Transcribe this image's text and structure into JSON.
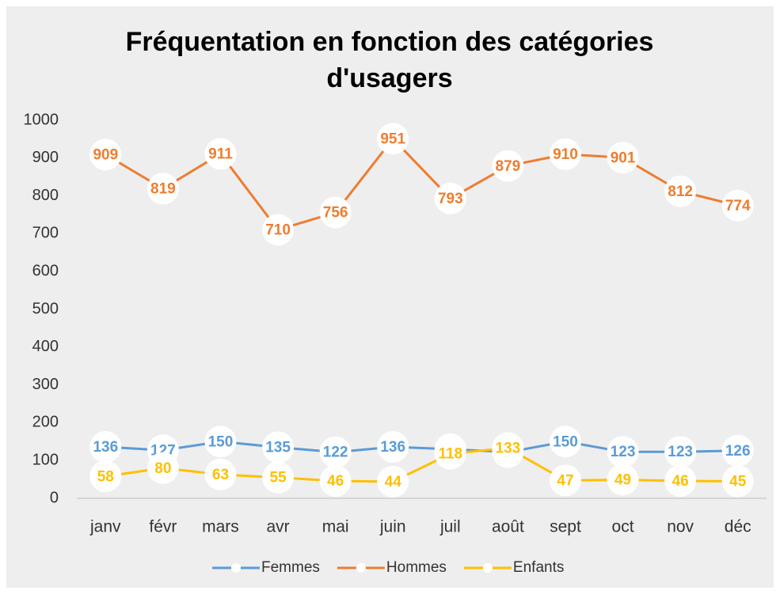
{
  "chart_data": {
    "type": "line",
    "title": "Fréquentation en fonction des catégories d'usagers",
    "categories": [
      "janv",
      "févr",
      "mars",
      "avr",
      "mai",
      "juin",
      "juil",
      "août",
      "sept",
      "oct",
      "nov",
      "déc"
    ],
    "series": [
      {
        "name": "Femmes",
        "color": "#5b9bd5",
        "values": [
          136,
          127,
          150,
          135,
          122,
          136,
          130,
          122,
          150,
          123,
          123,
          126
        ]
      },
      {
        "name": "Hommes",
        "color": "#ed7d31",
        "values": [
          909,
          819,
          911,
          710,
          756,
          951,
          793,
          879,
          910,
          901,
          812,
          774
        ]
      },
      {
        "name": "Enfants",
        "color": "#ffc000",
        "values": [
          58,
          80,
          63,
          55,
          46,
          44,
          118,
          133,
          47,
          49,
          46,
          45
        ]
      }
    ],
    "ylim": [
      0,
      1000
    ],
    "yticks": [
      0,
      100,
      200,
      300,
      400,
      500,
      600,
      700,
      800,
      900,
      1000
    ],
    "grid": false,
    "legend": "bottom"
  }
}
